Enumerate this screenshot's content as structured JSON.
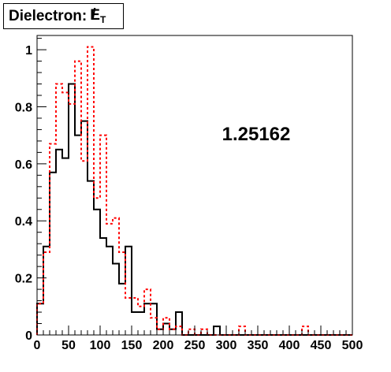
{
  "title": {
    "prefix": "Dielectron: ",
    "symbol": "E",
    "subscript": "T"
  },
  "annotation": "1.25162",
  "colors": {
    "series_black": "#000000",
    "series_red": "#ff0000",
    "frame": "#000000",
    "background": "#ffffff"
  },
  "chart_data": {
    "type": "histogram",
    "title": "Dielectron: E̸T",
    "xlabel": "",
    "ylabel": "",
    "xlim": [
      0,
      500
    ],
    "ylim": [
      0,
      1.05
    ],
    "xticks": [
      "0",
      "50",
      "100",
      "150",
      "200",
      "250",
      "300",
      "350",
      "400",
      "450",
      "500"
    ],
    "yticks": [
      "0",
      "0.2",
      "0.4",
      "0.6",
      "0.8",
      "1"
    ],
    "bin_width": 10,
    "grid": false,
    "legend": "none",
    "series": [
      {
        "style": "solid",
        "color": "#000000",
        "bin_edges_start": 0,
        "values": [
          0.11,
          0.31,
          0.57,
          0.65,
          0.62,
          0.88,
          0.7,
          0.75,
          0.54,
          0.44,
          0.34,
          0.31,
          0.25,
          0.18,
          0.31,
          0.08,
          0.08,
          0.11,
          0.11,
          0.02,
          0.04,
          0.02,
          0.08,
          0.0,
          0.0,
          0.0,
          0.0,
          0.0,
          0.03,
          0.0,
          0.0,
          0.0,
          0.0,
          0.0,
          0.0,
          0.0,
          0.0,
          0.0,
          0.0,
          0.0,
          0.0,
          0.0,
          0.0,
          0.0,
          0.0,
          0.0,
          0.0,
          0.0,
          0.0,
          0.0
        ]
      },
      {
        "style": "dashed",
        "color": "#ff0000",
        "bin_edges_start": 0,
        "values": [
          0.11,
          0.29,
          0.67,
          0.88,
          0.85,
          0.81,
          0.96,
          0.61,
          1.01,
          0.48,
          0.7,
          0.39,
          0.41,
          0.29,
          0.13,
          0.13,
          0.1,
          0.16,
          0.06,
          0.02,
          0.06,
          0.02,
          0.03,
          0.0,
          0.02,
          0.0,
          0.02,
          0.0,
          0.0,
          0.0,
          0.0,
          0.0,
          0.03,
          0.0,
          0.0,
          0.0,
          0.0,
          0.0,
          0.0,
          0.0,
          0.0,
          0.0,
          0.03,
          0.0,
          0.0,
          0.0,
          0.0,
          0.0,
          0.0,
          0.0
        ]
      }
    ]
  }
}
